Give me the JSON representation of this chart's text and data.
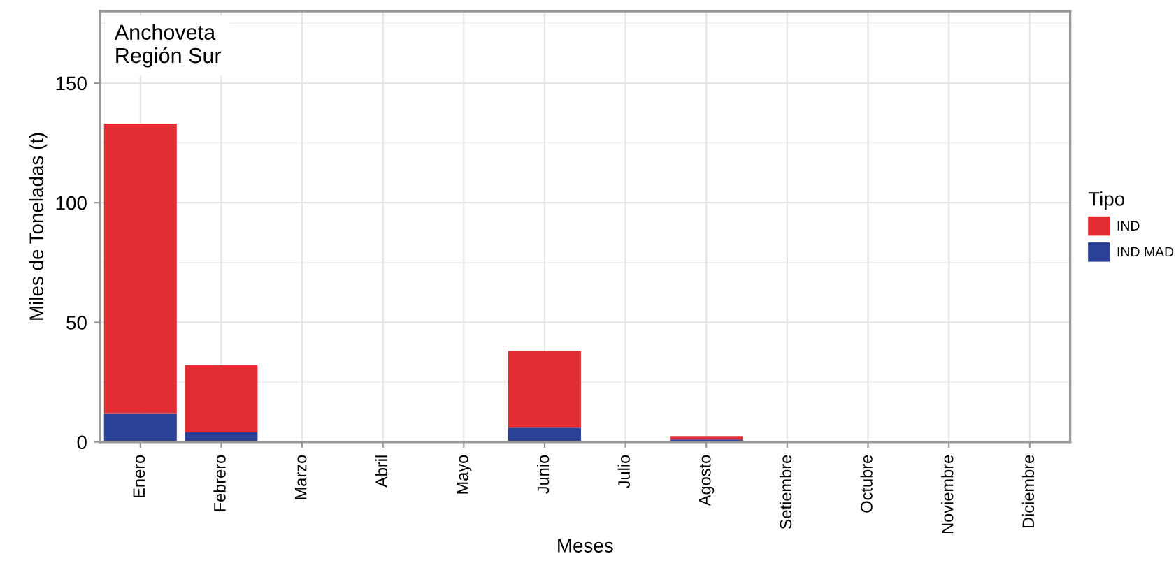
{
  "chart_data": {
    "type": "bar",
    "stacked": true,
    "annotations": [
      "Anchoveta\nRegión Sur"
    ],
    "xlabel": "Meses",
    "ylabel": "Miles de Toneladas (t)",
    "legend_title": "Tipo",
    "categories": [
      "Enero",
      "Febrero",
      "Marzo",
      "Abril",
      "Mayo",
      "Junio",
      "Julio",
      "Agosto",
      "Setiembre",
      "Octubre",
      "Noviembre",
      "Diciembre"
    ],
    "series": [
      {
        "name": "IND MAD",
        "color": "#2a4197",
        "values": [
          12,
          4,
          0,
          0,
          0,
          6,
          0,
          1,
          0,
          0,
          0,
          0
        ]
      },
      {
        "name": "IND",
        "color": "#e22d33",
        "values": [
          121,
          28,
          0,
          0,
          0,
          32,
          0,
          1.5,
          0,
          0,
          0,
          0
        ]
      }
    ],
    "ylim": [
      0,
      180
    ],
    "yticks": [
      0,
      50,
      100,
      150
    ],
    "grid": true,
    "legend": "right"
  }
}
